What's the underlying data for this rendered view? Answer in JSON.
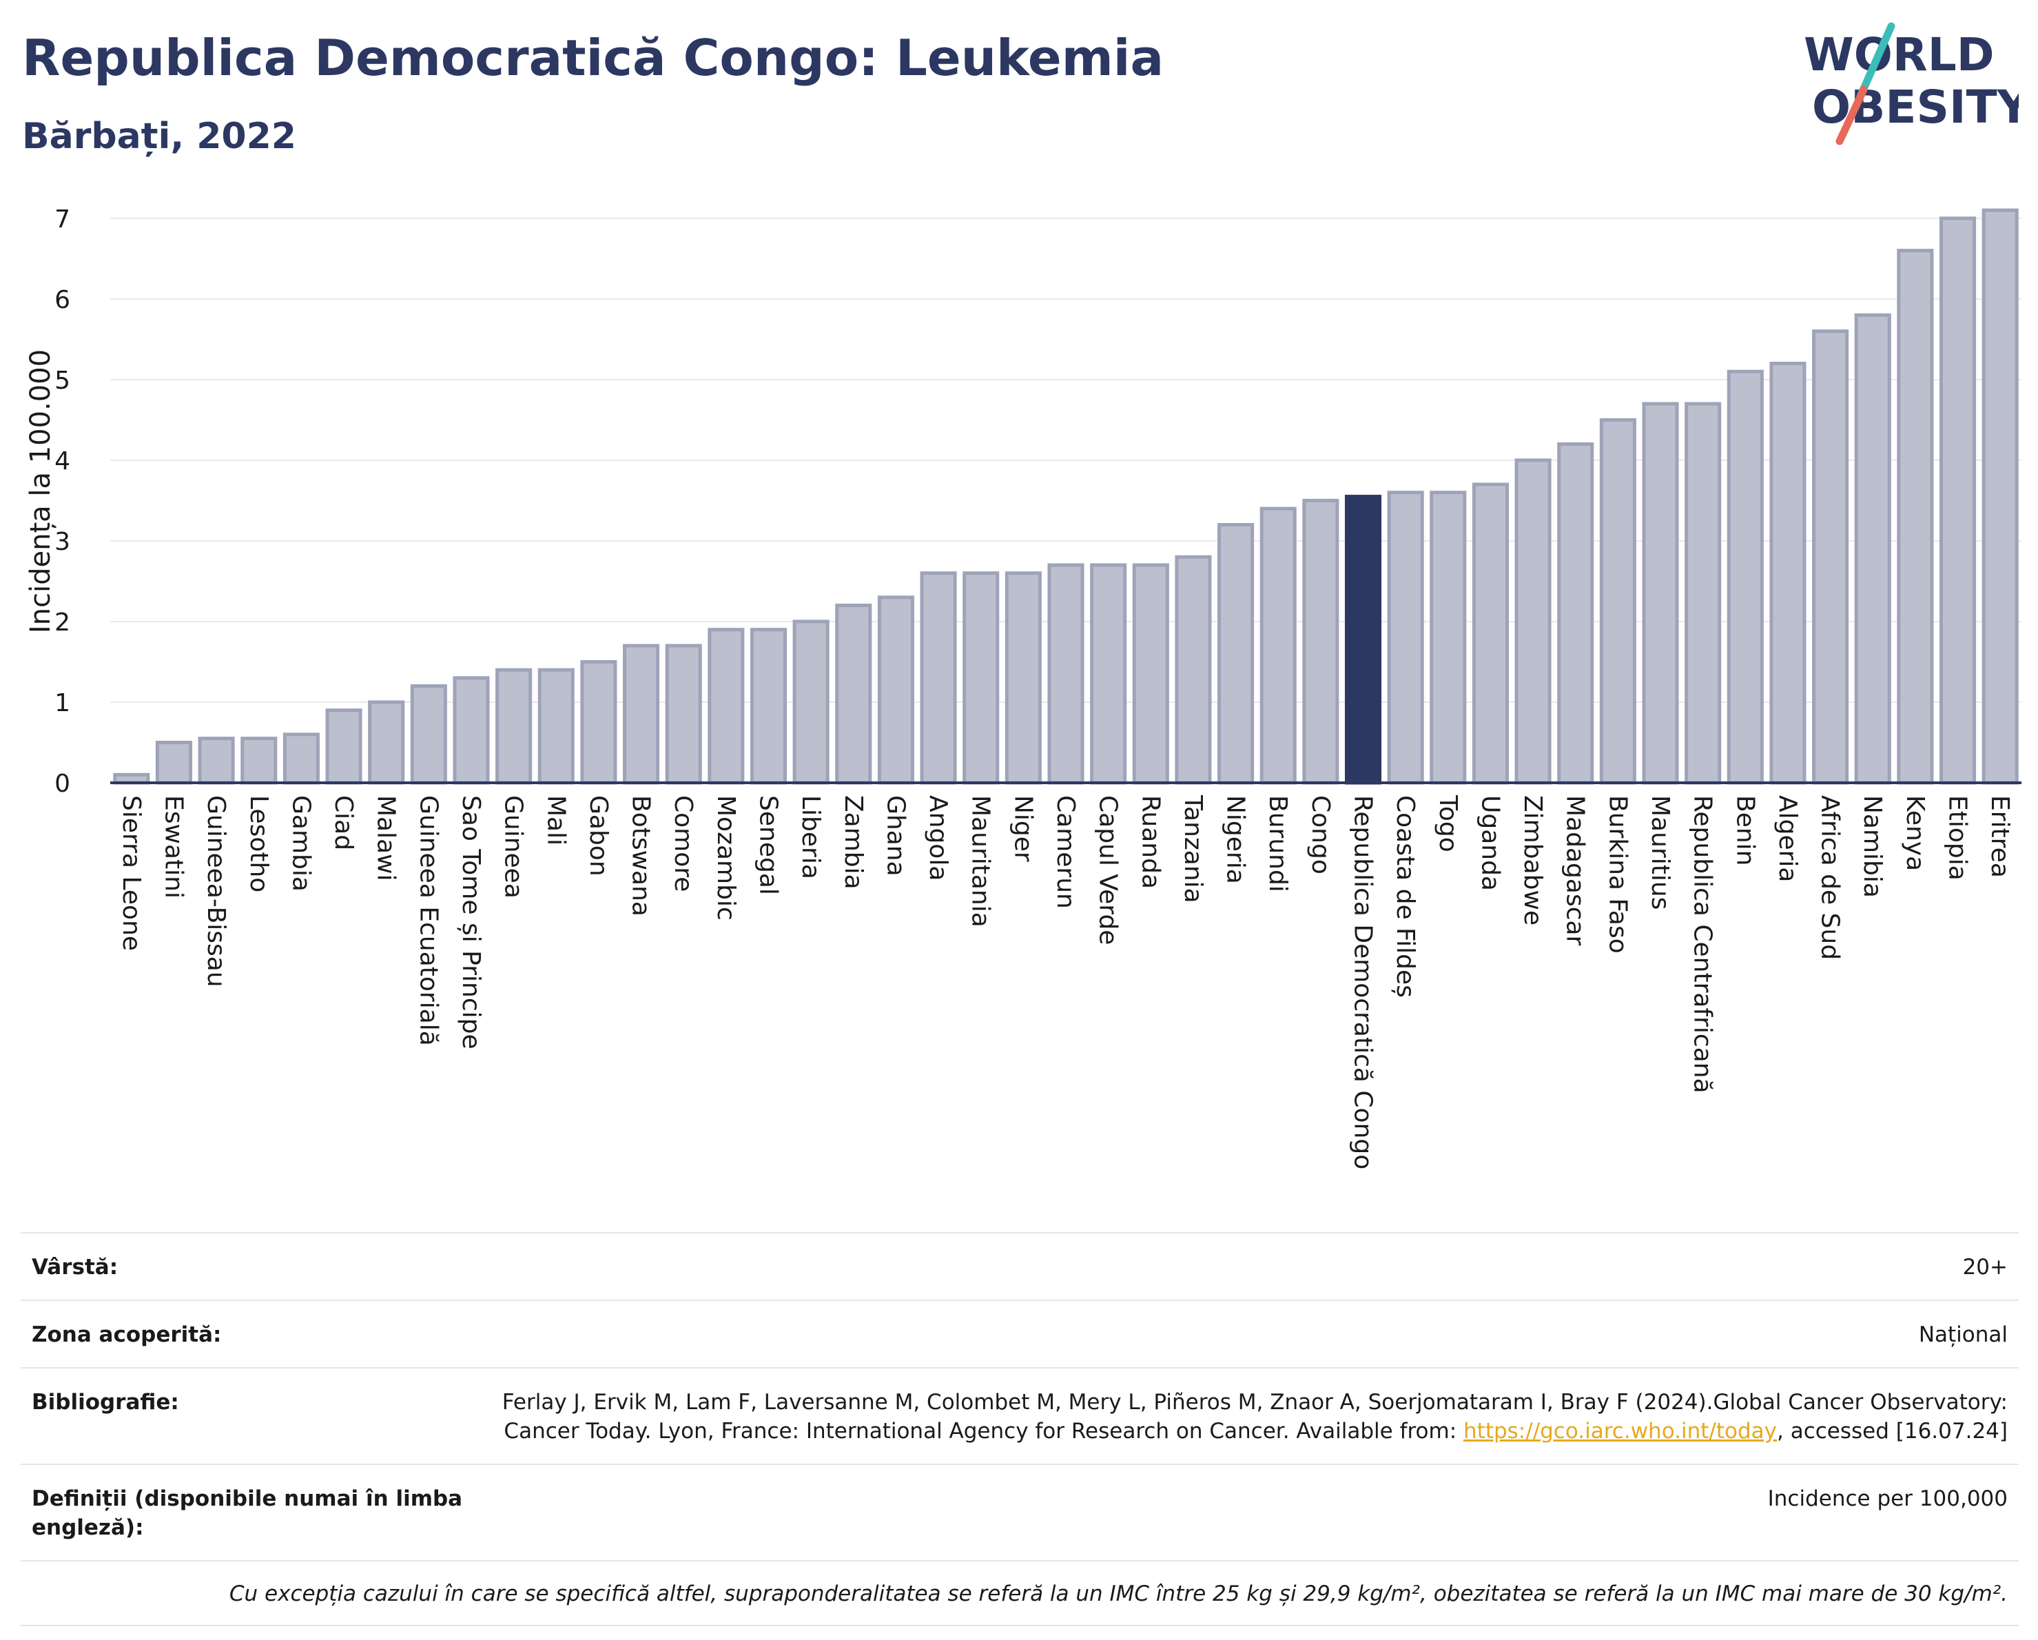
{
  "header": {
    "title": "Republica Democratică Congo: Leukemia",
    "subtitle": "Bărbați, 2022",
    "logo_line1": "WORLD",
    "logo_line2": "OBESITY"
  },
  "colors": {
    "bar": "#bcc0ce",
    "bar_stroke": "#9ea3b8",
    "highlight": "#2c3862",
    "axis": "#2c3862",
    "grid": "#e8e8e8",
    "logo_teal": "#3bbdb9",
    "logo_coral": "#e8685a"
  },
  "chart_data": {
    "type": "bar",
    "ylabel": "Incidența la 100.000",
    "xlabel": "",
    "ylim": [
      0,
      7.4
    ],
    "yticks": [
      0,
      1,
      2,
      3,
      4,
      5,
      6,
      7
    ],
    "grid": true,
    "highlight": "Republica Democratică Congo",
    "categories": [
      "Sierra Leone",
      "Eswatini",
      "Guineea-Bissau",
      "Lesotho",
      "Gambia",
      "Ciad",
      "Malawi",
      "Guineea Ecuatorială",
      "Sao Tome și Principe",
      "Guineea",
      "Mali",
      "Gabon",
      "Botswana",
      "Comore",
      "Mozambic",
      "Senegal",
      "Liberia",
      "Zambia",
      "Ghana",
      "Angola",
      "Mauritania",
      "Niger",
      "Camerun",
      "Capul Verde",
      "Ruanda",
      "Tanzania",
      "Nigeria",
      "Burundi",
      "Congo",
      "Republica Democratică Congo",
      "Coasta de Fildeș",
      "Togo",
      "Uganda",
      "Zimbabwe",
      "Madagascar",
      "Burkina Faso",
      "Mauritius",
      "Republica Centrafricană",
      "Benin",
      "Algeria",
      "Africa de Sud",
      "Namibia",
      "Kenya",
      "Etiopia",
      "Eritrea"
    ],
    "values": [
      0.1,
      0.5,
      0.55,
      0.55,
      0.6,
      0.9,
      1.0,
      1.2,
      1.3,
      1.4,
      1.4,
      1.5,
      1.7,
      1.7,
      1.9,
      1.9,
      2.0,
      2.2,
      2.3,
      2.6,
      2.6,
      2.6,
      2.7,
      2.7,
      2.7,
      2.8,
      3.2,
      3.4,
      3.5,
      3.55,
      3.6,
      3.6,
      3.7,
      4.0,
      4.2,
      4.5,
      4.7,
      4.7,
      5.1,
      5.2,
      5.6,
      5.8,
      6.6,
      7.0,
      7.1
    ]
  },
  "info": {
    "rows": [
      {
        "label": "Vârstă:",
        "value": "20+"
      },
      {
        "label": "Zona acoperită:",
        "value": "Național"
      },
      {
        "label": "Bibliografie:",
        "value_pre": "Ferlay J, Ervik M, Lam F, Laversanne M, Colombet M, Mery L, Piñeros M, Znaor A, Soerjomataram I, Bray F (2024).Global Cancer Observatory: Cancer Today. Lyon, France: International Agency for Research on Cancer. Available from: ",
        "link": "https://gco.iarc.who.int/today",
        "value_post": ", accessed [16.07.24]"
      },
      {
        "label": "Definiții (disponibile numai în limba engleză):",
        "value": "Incidence per 100,000"
      }
    ],
    "note": "Cu excepția cazului în care se specifică altfel, supraponderalitatea se referă la un IMC între 25 kg și 29,9 kg/m², obezitatea se referă la un IMC mai mare de 30 kg/m²."
  }
}
